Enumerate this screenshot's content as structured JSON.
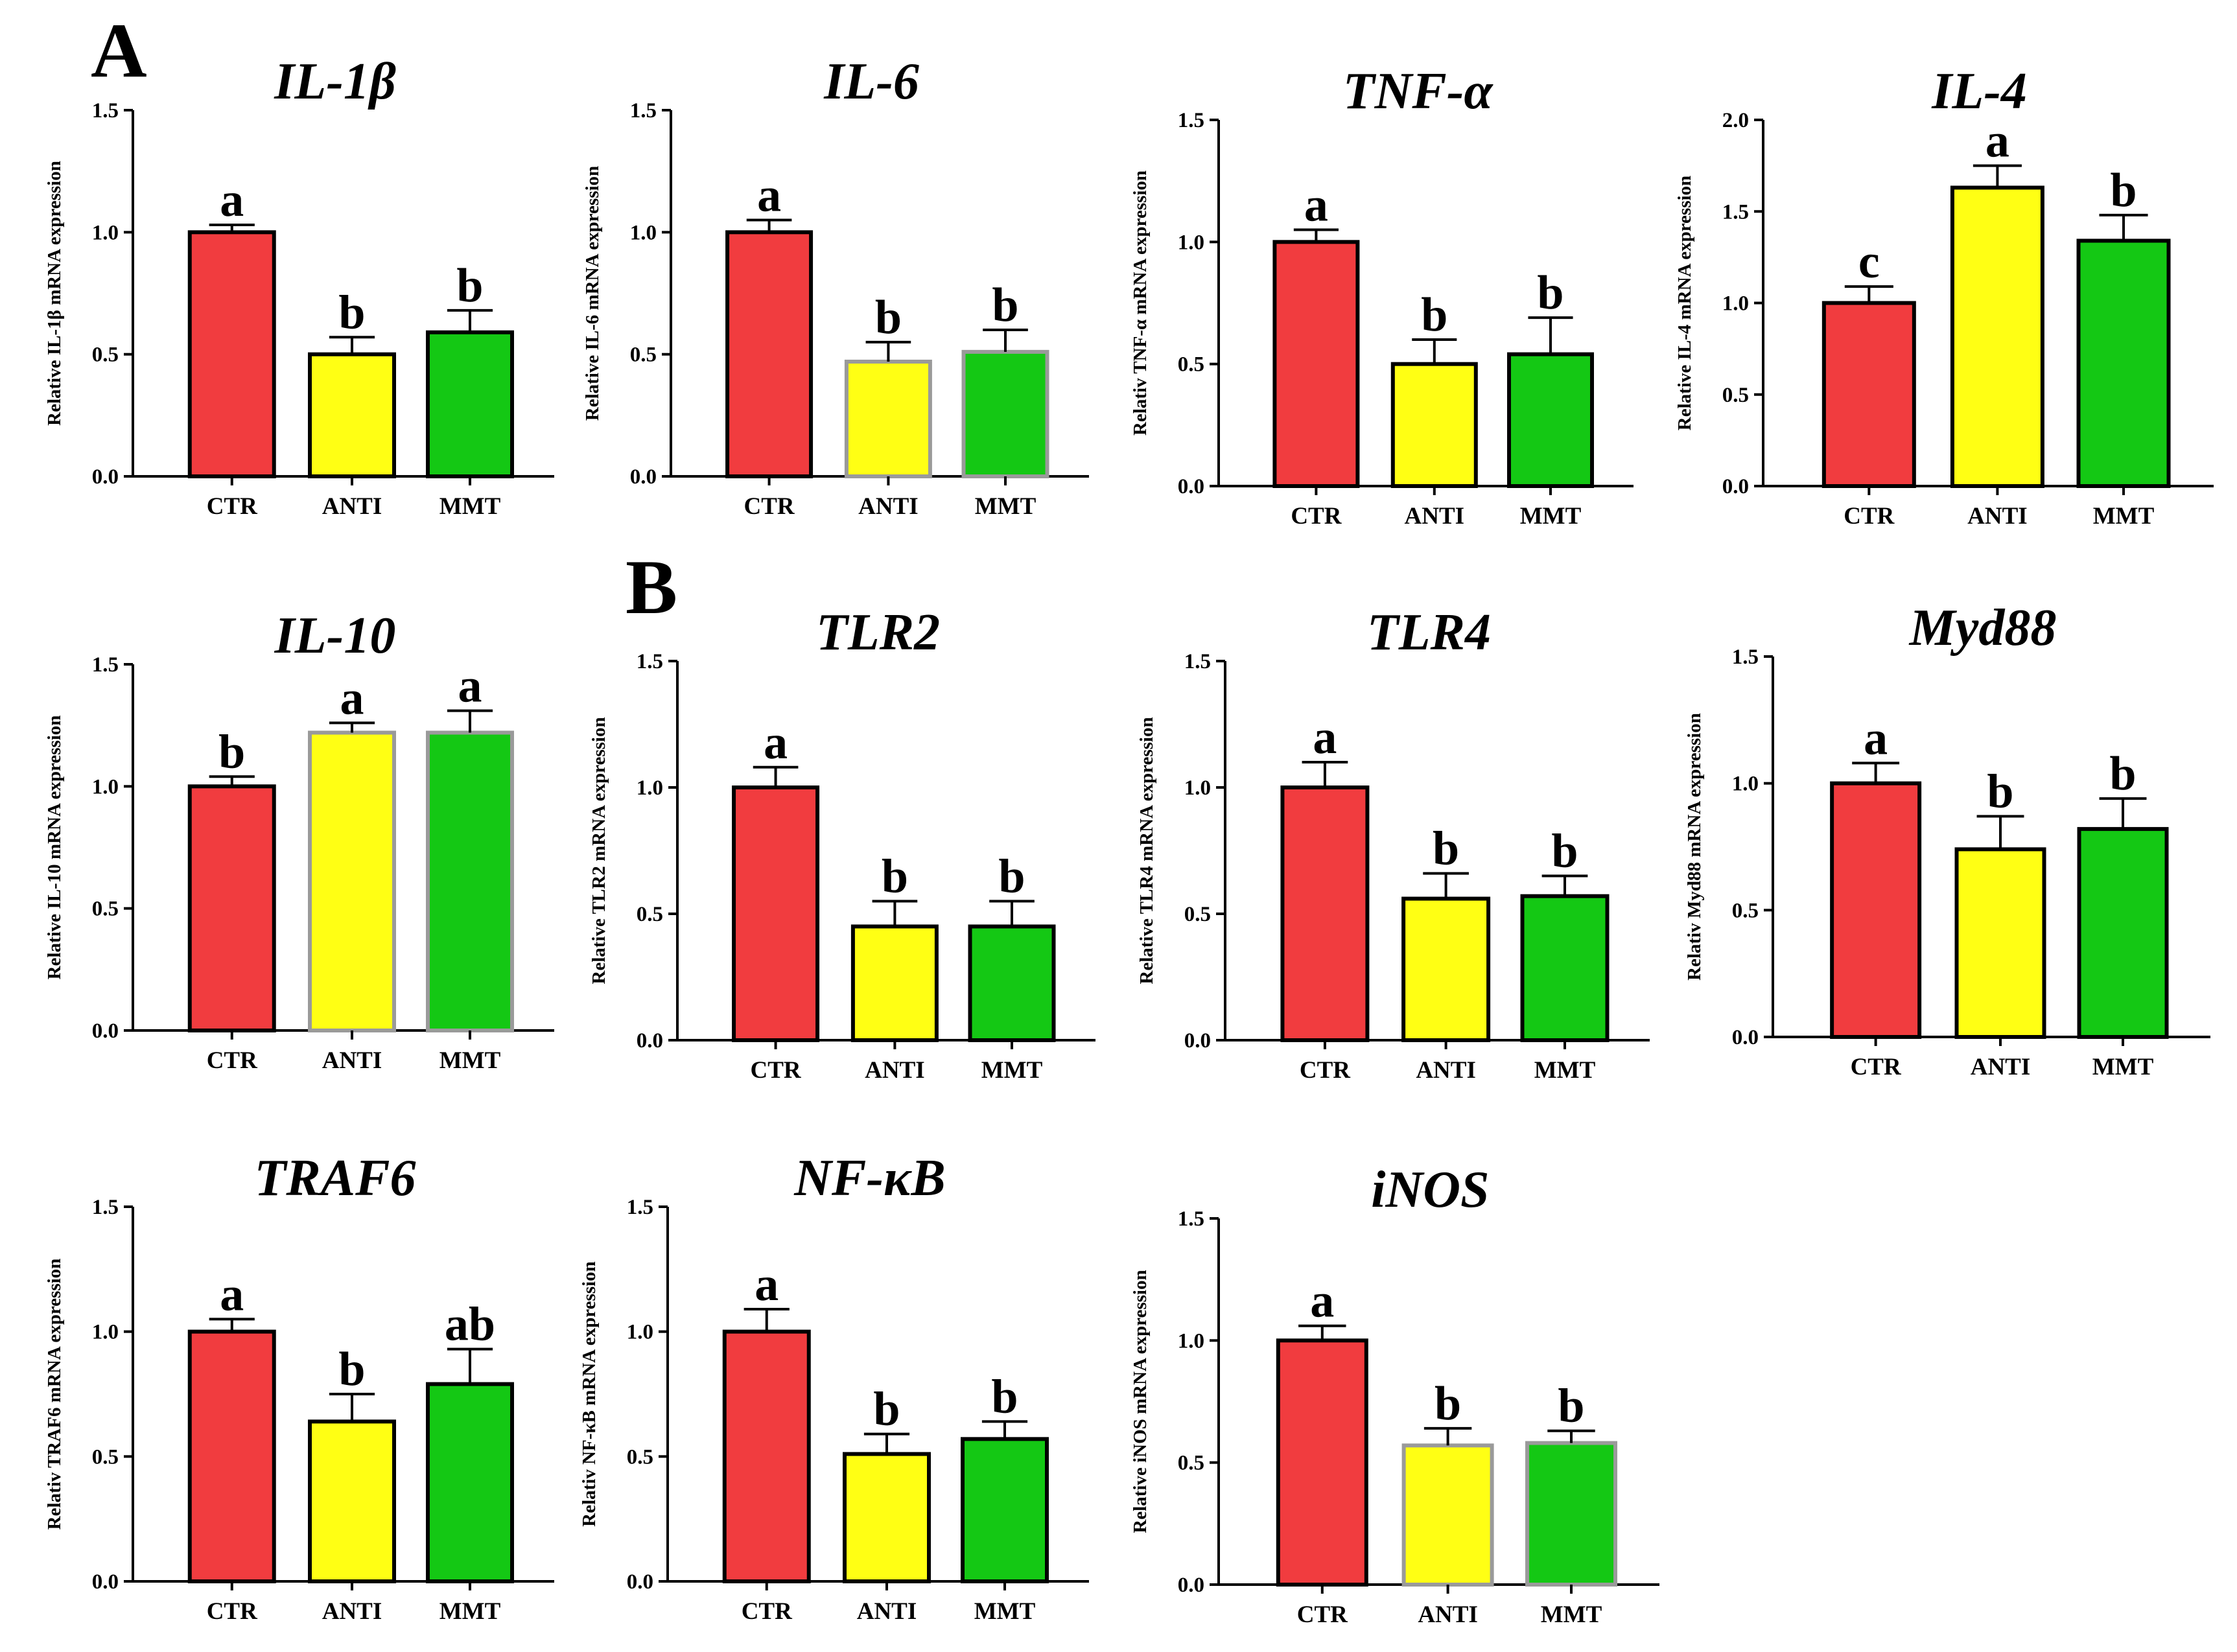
{
  "panel_labels": {
    "a": "A",
    "b": "B"
  },
  "colors": {
    "CTR": "#f13c3f",
    "ANTI": "#ffff14",
    "MMT": "#14c814",
    "axis": "#000000",
    "grey_border": "#9a9a9a"
  },
  "chart_data": [
    {
      "type": "bar",
      "title": "IL-1β",
      "ylabel": "Relative IL-1β mRNA expression",
      "categories": [
        "CTR",
        "ANTI",
        "MMT"
      ],
      "values": [
        1.0,
        0.5,
        0.59
      ],
      "errors": [
        0.03,
        0.07,
        0.09
      ],
      "sig_letters": [
        "a",
        "b",
        "b"
      ],
      "ylim": [
        0,
        1.5
      ],
      "yticks": [
        "0.0",
        "0.5",
        "1.0",
        "1.5"
      ],
      "grey_border": [
        false,
        false,
        false
      ]
    },
    {
      "type": "bar",
      "title": "IL-6",
      "ylabel": "Relative IL-6 mRNA expression",
      "categories": [
        "CTR",
        "ANTI",
        "MMT"
      ],
      "values": [
        1.0,
        0.47,
        0.51
      ],
      "errors": [
        0.05,
        0.08,
        0.09
      ],
      "sig_letters": [
        "a",
        "b",
        "b"
      ],
      "ylim": [
        0,
        1.5
      ],
      "yticks": [
        "0.0",
        "0.5",
        "1.0",
        "1.5"
      ],
      "grey_border": [
        false,
        true,
        true
      ]
    },
    {
      "type": "bar",
      "title": "TNF-α",
      "ylabel": "Relativ TNF-α mRNA expression",
      "categories": [
        "CTR",
        "ANTI",
        "MMT"
      ],
      "values": [
        1.0,
        0.5,
        0.54
      ],
      "errors": [
        0.05,
        0.1,
        0.15
      ],
      "sig_letters": [
        "a",
        "b",
        "b"
      ],
      "ylim": [
        0,
        1.5
      ],
      "yticks": [
        "0.0",
        "0.5",
        "1.0",
        "1.5"
      ],
      "grey_border": [
        false,
        false,
        false
      ]
    },
    {
      "type": "bar",
      "title": "IL-4",
      "ylabel": "Relative IL-4 mRNA expression",
      "categories": [
        "CTR",
        "ANTI",
        "MMT"
      ],
      "values": [
        1.0,
        1.63,
        1.34
      ],
      "errors": [
        0.09,
        0.12,
        0.14
      ],
      "sig_letters": [
        "c",
        "a",
        "b"
      ],
      "ylim": [
        0,
        2.0
      ],
      "yticks": [
        "0.0",
        "0.5",
        "1.0",
        "1.5",
        "2.0"
      ],
      "grey_border": [
        false,
        false,
        false
      ]
    },
    {
      "type": "bar",
      "title": "IL-10",
      "ylabel": "Relative IL-10 mRNA expression",
      "categories": [
        "CTR",
        "ANTI",
        "MMT"
      ],
      "values": [
        1.0,
        1.22,
        1.22
      ],
      "errors": [
        0.04,
        0.04,
        0.09
      ],
      "sig_letters": [
        "b",
        "a",
        "a"
      ],
      "ylim": [
        0,
        1.5
      ],
      "yticks": [
        "0.0",
        "0.5",
        "1.0",
        "1.5"
      ],
      "grey_border": [
        false,
        true,
        true
      ]
    },
    {
      "type": "bar",
      "title": "TLR2",
      "ylabel": "Relative TLR2 mRNA expression",
      "categories": [
        "CTR",
        "ANTI",
        "MMT"
      ],
      "values": [
        1.0,
        0.45,
        0.45
      ],
      "errors": [
        0.08,
        0.1,
        0.1
      ],
      "sig_letters": [
        "a",
        "b",
        "b"
      ],
      "ylim": [
        0,
        1.5
      ],
      "yticks": [
        "0.0",
        "0.5",
        "1.0",
        "1.5"
      ],
      "grey_border": [
        false,
        false,
        false
      ]
    },
    {
      "type": "bar",
      "title": "TLR4",
      "ylabel": "Relative TLR4 mRNA expression",
      "categories": [
        "CTR",
        "ANTI",
        "MMT"
      ],
      "values": [
        1.0,
        0.56,
        0.57
      ],
      "errors": [
        0.1,
        0.1,
        0.08
      ],
      "sig_letters": [
        "a",
        "b",
        "b"
      ],
      "ylim": [
        0,
        1.5
      ],
      "yticks": [
        "0.0",
        "0.5",
        "1.0",
        "1.5"
      ],
      "grey_border": [
        false,
        false,
        false
      ]
    },
    {
      "type": "bar",
      "title": "Myd88",
      "ylabel": "Relativ Myd88 mRNA expression",
      "categories": [
        "CTR",
        "ANTI",
        "MMT"
      ],
      "values": [
        1.0,
        0.74,
        0.82
      ],
      "errors": [
        0.08,
        0.13,
        0.12
      ],
      "sig_letters": [
        "a",
        "b",
        "b"
      ],
      "ylim": [
        0,
        1.5
      ],
      "yticks": [
        "0.0",
        "0.5",
        "1.0",
        "1.5"
      ],
      "grey_border": [
        false,
        false,
        false
      ]
    },
    {
      "type": "bar",
      "title": "TRAF6",
      "ylabel": "Relativ TRAF6 mRNA expression",
      "categories": [
        "CTR",
        "ANTI",
        "MMT"
      ],
      "values": [
        1.0,
        0.64,
        0.79
      ],
      "errors": [
        0.05,
        0.11,
        0.14
      ],
      "sig_letters": [
        "a",
        "b",
        "ab"
      ],
      "ylim": [
        0,
        1.5
      ],
      "yticks": [
        "0.0",
        "0.5",
        "1.0",
        "1.5"
      ],
      "grey_border": [
        false,
        false,
        false
      ]
    },
    {
      "type": "bar",
      "title": "NF-κB",
      "ylabel": "Relativ NF-κB mRNA expression",
      "categories": [
        "CTR",
        "ANTI",
        "MMT"
      ],
      "values": [
        1.0,
        0.51,
        0.57
      ],
      "errors": [
        0.09,
        0.08,
        0.07
      ],
      "sig_letters": [
        "a",
        "b",
        "b"
      ],
      "ylim": [
        0,
        1.5
      ],
      "yticks": [
        "0.0",
        "0.5",
        "1.0",
        "1.5"
      ],
      "grey_border": [
        false,
        false,
        false
      ]
    },
    {
      "type": "bar",
      "title": "iNOS",
      "ylabel": "Relative iNOS mRNA expression",
      "categories": [
        "CTR",
        "ANTI",
        "MMT"
      ],
      "values": [
        1.0,
        0.57,
        0.58
      ],
      "errors": [
        0.06,
        0.07,
        0.05
      ],
      "sig_letters": [
        "a",
        "b",
        "b"
      ],
      "ylim": [
        0,
        1.5
      ],
      "yticks": [
        "0.0",
        "0.5",
        "1.0",
        "1.5"
      ],
      "grey_border": [
        false,
        true,
        true
      ]
    }
  ]
}
